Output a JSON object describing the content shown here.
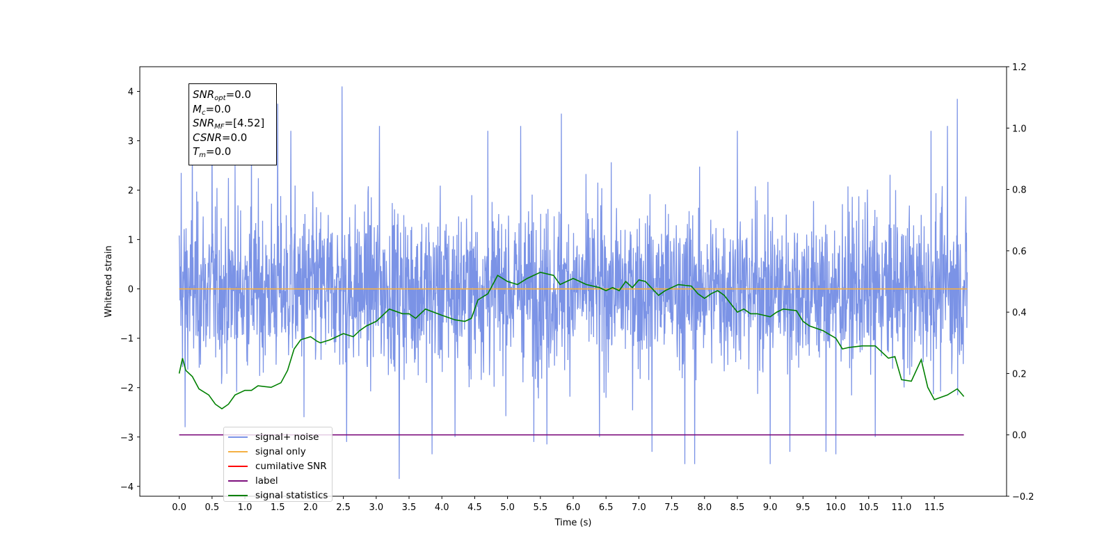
{
  "chart_data": {
    "type": "line",
    "title": "",
    "xlabel": "Time (s)",
    "ylabel": "Whitened strain",
    "xlim": [
      -0.6,
      12.6
    ],
    "ylim": [
      -4.2,
      4.5
    ],
    "y2lim": [
      -0.2,
      1.2
    ],
    "xticks": [
      0.0,
      0.5,
      1.0,
      1.5,
      2.0,
      2.5,
      3.0,
      3.5,
      4.0,
      4.5,
      5.0,
      5.5,
      6.0,
      6.5,
      7.0,
      7.5,
      8.0,
      8.5,
      9.0,
      9.5,
      10.0,
      10.5,
      11.0,
      11.5
    ],
    "xtick_labels": [
      "0.0",
      "0.5",
      "1.0",
      "1.5",
      "2.0",
      "2.5",
      "3.0",
      "3.5",
      "4.0",
      "4.5",
      "5.0",
      "5.5",
      "6.0",
      "6.5",
      "7.0",
      "7.5",
      "8.0",
      "8.5",
      "9.0",
      "9.5",
      "10.0",
      "10.5",
      "11.0",
      "11.5"
    ],
    "yticks": [
      -4,
      -3,
      -2,
      -1,
      0,
      1,
      2,
      3,
      4
    ],
    "ytick_labels": [
      "−4",
      "−3",
      "−2",
      "−1",
      "0",
      "1",
      "2",
      "3",
      "4"
    ],
    "y2ticks": [
      -0.2,
      0.0,
      0.2,
      0.4,
      0.6,
      0.8,
      1.0,
      1.2
    ],
    "y2tick_labels": [
      "−0.2",
      "0.0",
      "0.2",
      "0.4",
      "0.6",
      "0.8",
      "1.0",
      "1.2"
    ],
    "grid": false,
    "legend_position": "lower-left",
    "series": [
      {
        "name": "signal+ noise",
        "axis": "left",
        "color": "#7b93e6",
        "style": "noise",
        "x_range": [
          0.0,
          12.0
        ],
        "envelope": [
          2.4,
          -2.4
        ],
        "spikes": [
          [
            0.03,
            2.35
          ],
          [
            0.09,
            -2.8
          ],
          [
            0.2,
            3.1
          ],
          [
            0.5,
            3.3
          ],
          [
            0.85,
            2.5
          ],
          [
            1.1,
            3.2
          ],
          [
            1.5,
            3.75
          ],
          [
            1.7,
            3.2
          ],
          [
            1.9,
            -2.6
          ],
          [
            2.48,
            4.1
          ],
          [
            2.55,
            -3.1
          ],
          [
            3.05,
            3.3
          ],
          [
            3.35,
            -3.85
          ],
          [
            3.85,
            -3.35
          ],
          [
            4.2,
            -3.0
          ],
          [
            4.7,
            3.2
          ],
          [
            5.2,
            3.3
          ],
          [
            5.4,
            -3.1
          ],
          [
            5.6,
            -3.15
          ],
          [
            5.82,
            3.55
          ],
          [
            6.4,
            -3.0
          ],
          [
            7.2,
            -3.3
          ],
          [
            7.7,
            -3.55
          ],
          [
            7.85,
            -3.55
          ],
          [
            8.5,
            3.2
          ],
          [
            9.0,
            -3.55
          ],
          [
            9.3,
            -3.3
          ],
          [
            9.85,
            -3.3
          ],
          [
            10.0,
            -3.35
          ],
          [
            10.6,
            -3.0
          ],
          [
            11.45,
            3.2
          ],
          [
            11.7,
            3.3
          ],
          [
            11.85,
            3.85
          ]
        ]
      },
      {
        "name": "signal only",
        "axis": "left",
        "color": "#f5b042",
        "x": [
          0.0,
          12.0
        ],
        "y": [
          0.0,
          0.0
        ]
      },
      {
        "name": "cumilative SNR",
        "axis": "right",
        "color": "#ff0000",
        "x": [],
        "y": []
      },
      {
        "name": "label",
        "axis": "right",
        "color": "#7d0f7d",
        "x": [
          0.0,
          11.95
        ],
        "y": [
          0.0,
          0.0
        ]
      },
      {
        "name": "signal statistics",
        "axis": "right",
        "color": "#008000",
        "x": [
          0.0,
          0.05,
          0.1,
          0.2,
          0.3,
          0.45,
          0.55,
          0.65,
          0.75,
          0.85,
          1.0,
          1.1,
          1.2,
          1.4,
          1.55,
          1.65,
          1.75,
          1.85,
          2.0,
          2.1,
          2.15,
          2.3,
          2.5,
          2.65,
          2.75,
          2.85,
          3.0,
          3.2,
          3.4,
          3.5,
          3.6,
          3.75,
          4.0,
          4.2,
          4.35,
          4.45,
          4.55,
          4.7,
          4.85,
          5.0,
          5.15,
          5.3,
          5.5,
          5.7,
          5.8,
          6.0,
          6.2,
          6.4,
          6.5,
          6.6,
          6.7,
          6.8,
          6.9,
          7.0,
          7.1,
          7.3,
          7.4,
          7.6,
          7.8,
          7.9,
          8.0,
          8.1,
          8.2,
          8.3,
          8.5,
          8.6,
          8.7,
          8.8,
          9.0,
          9.1,
          9.2,
          9.4,
          9.5,
          9.6,
          9.8,
          10.0,
          10.1,
          10.2,
          10.4,
          10.6,
          10.8,
          10.9,
          11.0,
          11.15,
          11.3,
          11.4,
          11.5,
          11.7,
          11.85,
          11.95
        ],
        "y": [
          0.2,
          0.25,
          0.21,
          0.19,
          0.15,
          0.13,
          0.1,
          0.085,
          0.1,
          0.13,
          0.145,
          0.145,
          0.16,
          0.155,
          0.17,
          0.21,
          0.28,
          0.31,
          0.32,
          0.305,
          0.3,
          0.31,
          0.33,
          0.32,
          0.34,
          0.355,
          0.37,
          0.41,
          0.395,
          0.395,
          0.38,
          0.41,
          0.39,
          0.375,
          0.37,
          0.38,
          0.44,
          0.46,
          0.52,
          0.5,
          0.49,
          0.51,
          0.53,
          0.52,
          0.49,
          0.51,
          0.49,
          0.48,
          0.47,
          0.48,
          0.47,
          0.5,
          0.48,
          0.505,
          0.5,
          0.455,
          0.47,
          0.49,
          0.485,
          0.46,
          0.445,
          0.46,
          0.47,
          0.455,
          0.4,
          0.41,
          0.395,
          0.395,
          0.385,
          0.4,
          0.41,
          0.405,
          0.37,
          0.355,
          0.34,
          0.315,
          0.28,
          0.285,
          0.29,
          0.29,
          0.25,
          0.255,
          0.18,
          0.175,
          0.245,
          0.155,
          0.115,
          0.13,
          0.15,
          0.125
        ]
      }
    ]
  },
  "infobox": {
    "snr_opt": {
      "main": "SNR",
      "sub": "opt",
      "value": "=0.0"
    },
    "mc": {
      "main": "M",
      "sub": "c",
      "value": "=0.0"
    },
    "snr_mf": {
      "main": "SNR",
      "sub": "MF",
      "value": "=[4.52]"
    },
    "csnr": {
      "main": "CSNR",
      "value": "=0.0"
    },
    "tm": {
      "main": "T",
      "sub": "m",
      "value": "=0.0"
    }
  },
  "legend": {
    "items": [
      {
        "label": "signal+ noise",
        "color": "#7b93e6"
      },
      {
        "label": "signal only",
        "color": "#f5b042"
      },
      {
        "label": "cumilative SNR",
        "color": "#ff0000"
      },
      {
        "label": "label",
        "color": "#7d0f7d"
      },
      {
        "label": "signal statistics",
        "color": "#008000"
      }
    ]
  }
}
